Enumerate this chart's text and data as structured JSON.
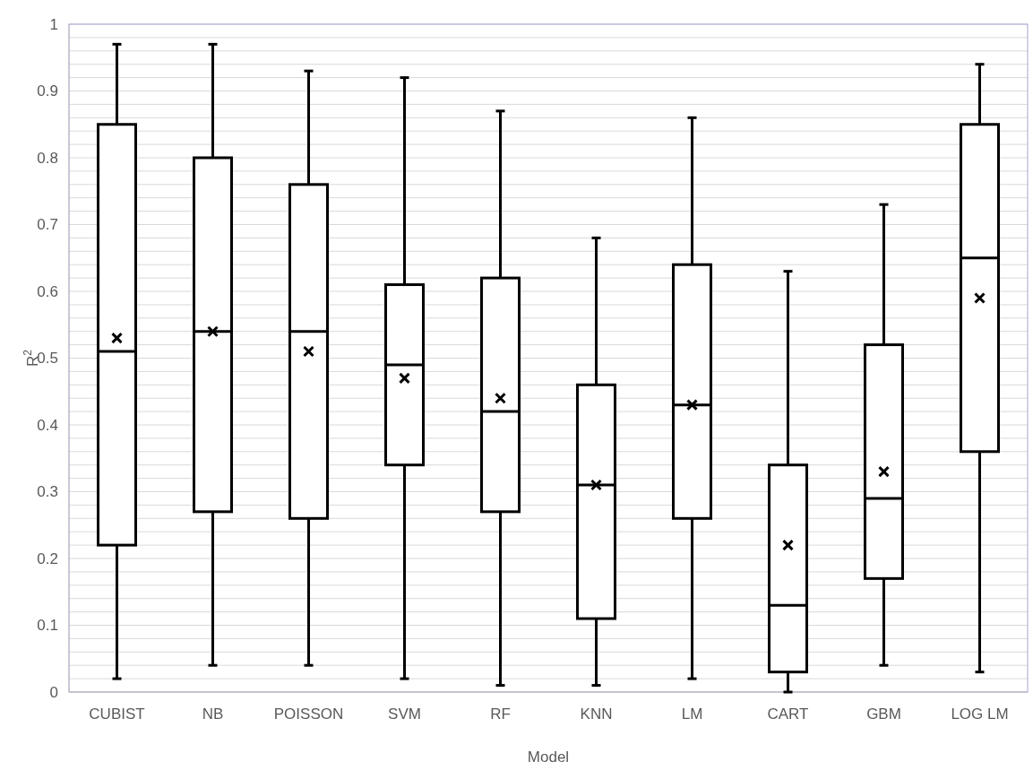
{
  "chart_data": {
    "type": "box",
    "xlabel": "Model",
    "ylabel": "R$^{2}$",
    "categories": [
      "CUBIST",
      "NB",
      "POISSON",
      "SVM",
      "RF",
      "KNN",
      "LM",
      "CART",
      "GBM",
      "LOG LM"
    ],
    "boxes": [
      {
        "low": 0.02,
        "q1": 0.22,
        "median": 0.51,
        "q3": 0.85,
        "high": 0.97,
        "mean": 0.53
      },
      {
        "low": 0.04,
        "q1": 0.27,
        "median": 0.54,
        "q3": 0.8,
        "high": 0.97,
        "mean": 0.54
      },
      {
        "low": 0.04,
        "q1": 0.26,
        "median": 0.54,
        "q3": 0.76,
        "high": 0.93,
        "mean": 0.51
      },
      {
        "low": 0.02,
        "q1": 0.34,
        "median": 0.49,
        "q3": 0.61,
        "high": 0.92,
        "mean": 0.47
      },
      {
        "low": 0.01,
        "q1": 0.27,
        "median": 0.42,
        "q3": 0.62,
        "high": 0.87,
        "mean": 0.44
      },
      {
        "low": 0.01,
        "q1": 0.11,
        "median": 0.31,
        "q3": 0.46,
        "high": 0.68,
        "mean": 0.31
      },
      {
        "low": 0.02,
        "q1": 0.26,
        "median": 0.43,
        "q3": 0.64,
        "high": 0.86,
        "mean": 0.43
      },
      {
        "low": 0,
        "q1": 0.03,
        "median": 0.13,
        "q3": 0.34,
        "high": 0.63,
        "mean": 0.22
      },
      {
        "low": 0.04,
        "q1": 0.17,
        "median": 0.29,
        "q3": 0.52,
        "high": 0.73,
        "mean": 0.33
      },
      {
        "low": 0.03,
        "q1": 0.36,
        "median": 0.65,
        "q3": 0.85,
        "high": 0.94,
        "mean": 0.59
      }
    ],
    "color": "#000000",
    "ylim": [
      0,
      1
    ],
    "yticks": [
      0,
      {
        "value": 0.02,
        "label": null
      },
      {
        "value": 0.04,
        "label": null
      },
      {
        "value": 0.06,
        "label": null
      },
      {
        "value": 0.08,
        "label": null
      },
      0.1,
      {
        "value": 0.12,
        "label": null
      },
      {
        "value": 0.14,
        "label": null
      },
      {
        "value": 0.16,
        "label": null
      },
      {
        "value": 0.18,
        "label": null
      },
      0.2,
      {
        "value": 0.22,
        "label": null
      },
      {
        "value": 0.24,
        "label": null
      },
      {
        "value": 0.26,
        "label": null
      },
      {
        "value": 0.28,
        "label": null
      },
      0.3,
      {
        "value": 0.32,
        "label": null
      },
      {
        "value": 0.34,
        "label": null
      },
      {
        "value": 0.36,
        "label": null
      },
      {
        "value": 0.38,
        "label": null
      },
      0.4,
      {
        "value": 0.42,
        "label": null
      },
      {
        "value": 0.44,
        "label": null
      },
      {
        "value": 0.46,
        "label": null
      },
      {
        "value": 0.48,
        "label": null
      },
      0.5,
      {
        "value": 0.52,
        "label": null
      },
      {
        "value": 0.54,
        "label": null
      },
      {
        "value": 0.56,
        "label": null
      },
      {
        "value": 0.58,
        "label": null
      },
      0.6,
      {
        "value": 0.62,
        "label": null
      },
      {
        "value": 0.64,
        "label": null
      },
      {
        "value": 0.66,
        "label": null
      },
      {
        "value": 0.68,
        "label": null
      },
      0.7,
      {
        "value": 0.72,
        "label": null
      },
      {
        "value": 0.74,
        "label": null
      },
      {
        "value": 0.76,
        "label": null
      },
      {
        "value": 0.78,
        "label": null
      },
      0.8,
      {
        "value": 0.82,
        "label": null
      },
      {
        "value": 0.84,
        "label": null
      },
      {
        "value": 0.86,
        "label": null
      },
      {
        "value": 0.88,
        "label": null
      },
      0.9,
      {
        "value": 0.92,
        "label": null
      },
      {
        "value": 0.94,
        "label": null
      },
      {
        "value": 0.96,
        "label": null
      },
      {
        "value": 0.98,
        "label": null
      },
      1
    ],
    "grid": true,
    "marker": "cross"
  }
}
